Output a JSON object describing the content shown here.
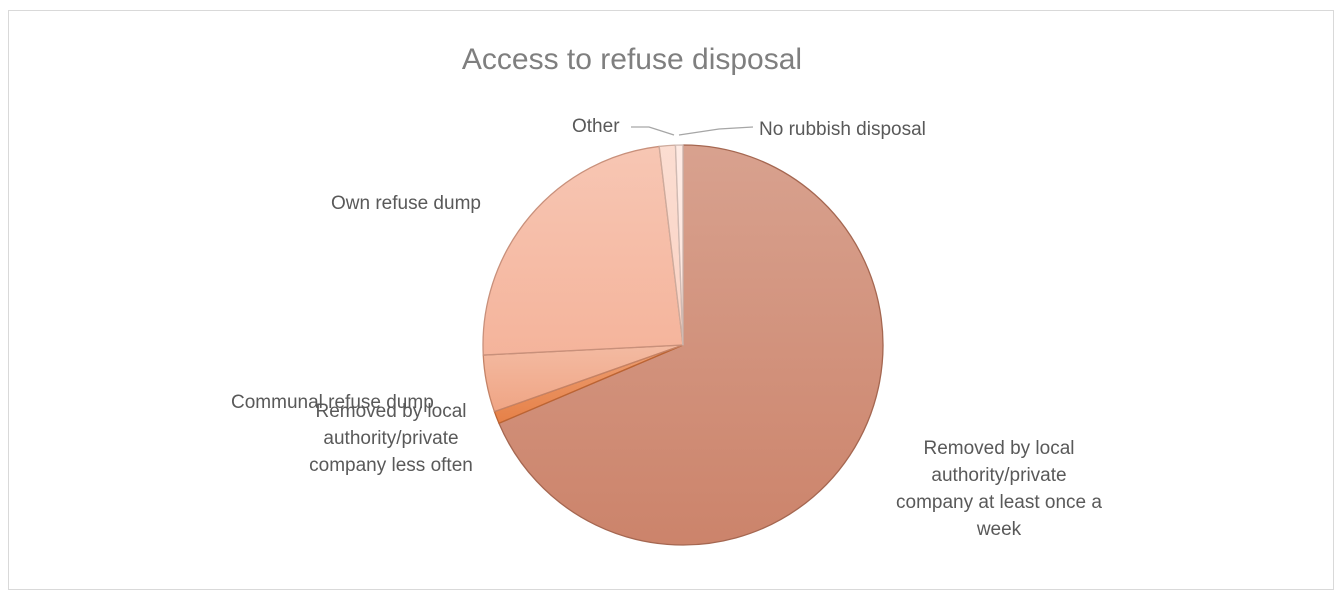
{
  "chart_data": {
    "type": "pie",
    "title": "Access to refuse disposal",
    "legend": "none",
    "slices": [
      {
        "label": "Removed by local authority/private company at least once a week",
        "label_lines": [
          "Removed by local",
          "authority/private",
          "company at least once a",
          "week"
        ],
        "value": 68.6,
        "color": "#c97d63"
      },
      {
        "label": "Removed by local authority/private company less often",
        "label_lines": [
          "Removed by local",
          "authority/private",
          "company less often"
        ],
        "value": 1.0,
        "color": "#e57a3e"
      },
      {
        "label": "Communal refuse dump",
        "label_lines": [
          "Communal refuse dump"
        ],
        "value": 4.6,
        "color": "#efa07e"
      },
      {
        "label": "Own refuse dump",
        "label_lines": [
          "Own refuse dump"
        ],
        "value": 23.9,
        "color": "#f4b096"
      },
      {
        "label": "Other",
        "label_lines": [
          "Other"
        ],
        "value": 1.3,
        "color": "#fad0c0"
      },
      {
        "label": "No rubbish disposal",
        "label_lines": [
          "No rubbish disposal"
        ],
        "value": 0.6,
        "color": "#fde3da"
      }
    ]
  }
}
